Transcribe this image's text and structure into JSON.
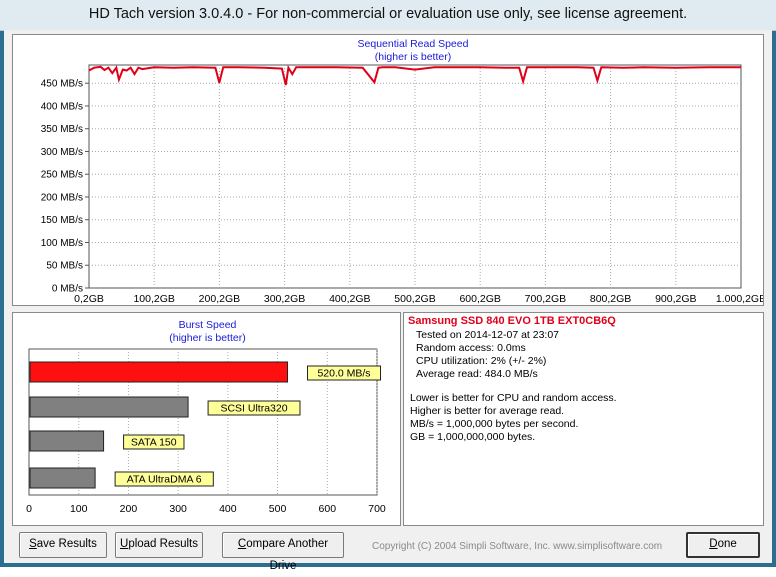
{
  "window": {
    "title": "HD Tach version 3.0.4.0  - For non-commercial or evaluation use only, see license agreement."
  },
  "sequential_chart": {
    "title": "Sequential Read Speed",
    "subtitle": "(higher is better)",
    "line_color": "#e0001a"
  },
  "burst_chart": {
    "title": "Burst Speed",
    "subtitle": "(higher is better)",
    "bar_red": "#ff1010",
    "bar_gray": "#808080",
    "label_bg": "#ffff99"
  },
  "chart_data": [
    {
      "type": "line",
      "title": "Sequential Read Speed",
      "subtitle": "(higher is better)",
      "xlabel": "",
      "ylabel": "",
      "x_ticks": [
        "0,2GB",
        "100,2GB",
        "200,2GB",
        "300,2GB",
        "400,2GB",
        "500,2GB",
        "600,2GB",
        "700,2GB",
        "800,2GB",
        "900,2GB",
        "1.000,2GB"
      ],
      "y_ticks": [
        "0 MB/s",
        "50 MB/s",
        "100 MB/s",
        "150 MB/s",
        "200 MB/s",
        "250 MB/s",
        "300 MB/s",
        "350 MB/s",
        "400 MB/s",
        "450 MB/s"
      ],
      "xlim": [
        0.2,
        1000.2
      ],
      "ylim": [
        0,
        490
      ],
      "grid": true,
      "series": [
        {
          "x": [
            0.2,
            8,
            18,
            24,
            30,
            36,
            42,
            46,
            52,
            58,
            64,
            70,
            76,
            82,
            100,
            130,
            160,
            194,
            200,
            206,
            230,
            270,
            296,
            302,
            306,
            312,
            318,
            340,
            380,
            420,
            438,
            444,
            450,
            470,
            500,
            530,
            560,
            600,
            640,
            660,
            666,
            672,
            700,
            750,
            774,
            780,
            786,
            820,
            850,
            900,
            950,
            1000.2
          ],
          "y": [
            478,
            484,
            486,
            479,
            484,
            472,
            484,
            458,
            480,
            478,
            484,
            470,
            484,
            481,
            485,
            484,
            485,
            484,
            451,
            485,
            485,
            484,
            482,
            446,
            484,
            470,
            485,
            485,
            485,
            484,
            452,
            484,
            485,
            485,
            480,
            485,
            485,
            485,
            484,
            484,
            454,
            485,
            485,
            485,
            484,
            456,
            485,
            484,
            485,
            484,
            485,
            485
          ]
        }
      ]
    },
    {
      "type": "bar",
      "orientation": "horizontal",
      "title": "Burst Speed",
      "subtitle": "(higher is better)",
      "x_ticks": [
        "0",
        "100",
        "200",
        "300",
        "400",
        "500",
        "600",
        "700"
      ],
      "xlim": [
        0,
        700
      ],
      "grid": true,
      "categories": [
        "520.0 MB/s",
        "SCSI Ultra320",
        "SATA 150",
        "ATA UltraDMA 6"
      ],
      "values": [
        520,
        320,
        150,
        133
      ]
    }
  ],
  "info": {
    "drive_name": "Samsung SSD 840 EVO 1TB EXT0CB6Q",
    "tested_on": "Tested on 2014-12-07 at 23:07",
    "random_access": "Random access: 0.0ms",
    "cpu_utilization": "CPU utilization: 2% (+/- 2%)",
    "average_read": "Average read: 484.0 MB/s",
    "note1": "Lower is better for CPU and random access.",
    "note2": "Higher is better for average read.",
    "note3": "MB/s = 1,000,000 bytes per second.",
    "note4": "GB = 1,000,000,000 bytes."
  },
  "buttons": {
    "save_key": "S",
    "save_rest": "ave Results",
    "upload_key": "U",
    "upload_rest": "pload Results",
    "compare_key": "C",
    "compare_rest": "ompare Another Drive",
    "done_key": "D",
    "done_rest": "one"
  },
  "copyright": "Copyright (C) 2004 Simpli Software, Inc. www.simplisoftware.com"
}
